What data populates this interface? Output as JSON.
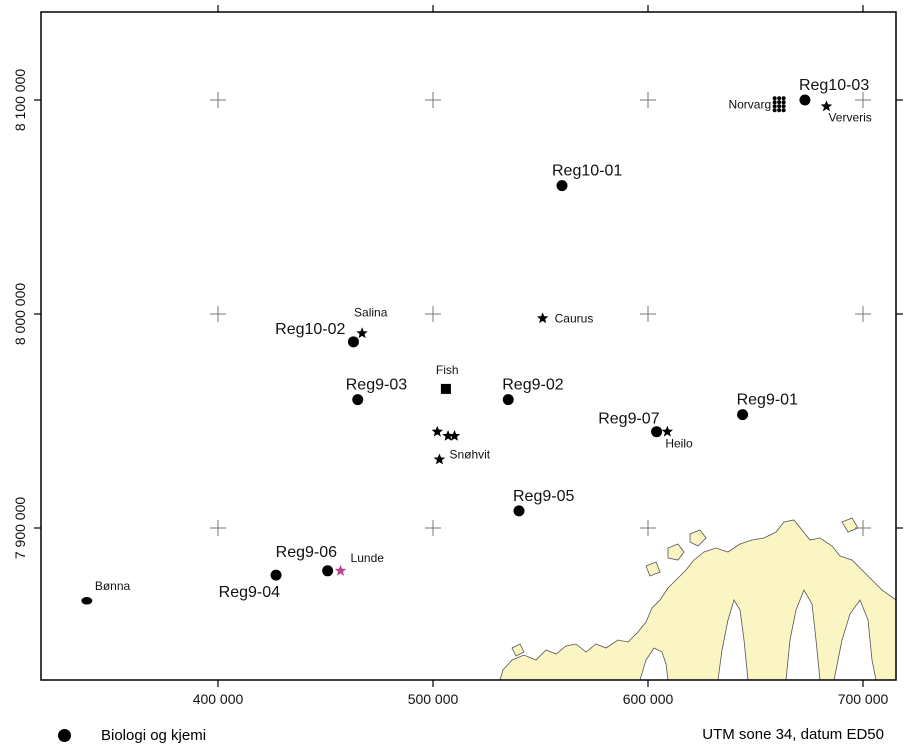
{
  "map": {
    "colors": {
      "frame": "#000000",
      "land_fill": "#fbf5c3",
      "land_stroke": "#555555",
      "station": "#000000",
      "field_star": "#000000",
      "highlight_star": "#c2418e",
      "grid_cross": "#777777"
    },
    "x_axis": {
      "ticks": [
        {
          "value": 400000,
          "label": "400 000"
        },
        {
          "value": 500000,
          "label": "500 000"
        },
        {
          "value": 600000,
          "label": "600 000"
        },
        {
          "value": 700000,
          "label": "700 000"
        }
      ]
    },
    "y_axis": {
      "ticks": [
        {
          "value": 7900000,
          "label": "7 900 000"
        },
        {
          "value": 8000000,
          "label": "8 000 000"
        },
        {
          "value": 8100000,
          "label": "8 100 000"
        }
      ]
    },
    "stations": [
      {
        "name": "Reg10-03",
        "easting": 673000,
        "northing": 8100000
      },
      {
        "name": "Reg10-01",
        "easting": 560000,
        "northing": 8060000
      },
      {
        "name": "Reg10-02",
        "easting": 463000,
        "northing": 7987000
      },
      {
        "name": "Reg9-03",
        "easting": 465000,
        "northing": 7960000
      },
      {
        "name": "Reg9-02",
        "easting": 535000,
        "northing": 7960000
      },
      {
        "name": "Reg9-01",
        "easting": 644000,
        "northing": 7953000
      },
      {
        "name": "Reg9-07",
        "easting": 604000,
        "northing": 7945000
      },
      {
        "name": "Reg9-05",
        "easting": 540000,
        "northing": 7908000
      },
      {
        "name": "Reg9-06",
        "easting": 451000,
        "northing": 7880000
      },
      {
        "name": "Reg9-04",
        "easting": 427000,
        "northing": 7878000
      }
    ],
    "fields": [
      {
        "name": "Norvarg",
        "marker": "cluster",
        "easting": 661000,
        "northing": 8098000
      },
      {
        "name": "Ververis",
        "marker": "star",
        "easting": 683000,
        "northing": 8097000
      },
      {
        "name": "Caurus",
        "marker": "star",
        "easting": 551000,
        "northing": 7998000
      },
      {
        "name": "Salina",
        "marker": "star",
        "easting": 467000,
        "northing": 7991000
      },
      {
        "name": "Fish",
        "marker": "square",
        "easting": 506000,
        "northing": 7965000
      },
      {
        "name": "Snøhvit",
        "marker": "star",
        "easting": 503000,
        "northing": 7932000
      },
      {
        "name": "Heilo",
        "marker": "star",
        "easting": 609000,
        "northing": 7945000
      },
      {
        "name": "Lunde",
        "marker": "highlight-star",
        "easting": 457000,
        "northing": 7880000
      },
      {
        "name": "Bønna",
        "marker": "oval",
        "easting": 339000,
        "northing": 7866000
      }
    ],
    "extra_stars": [
      {
        "easting": 502000,
        "northing": 7945000
      },
      {
        "easting": 507000,
        "northing": 7943000
      },
      {
        "easting": 510000,
        "northing": 7943000
      }
    ]
  },
  "legend": {
    "label": "Biologi og kjemi"
  },
  "datum_note": "UTM sone 34, datum ED50"
}
